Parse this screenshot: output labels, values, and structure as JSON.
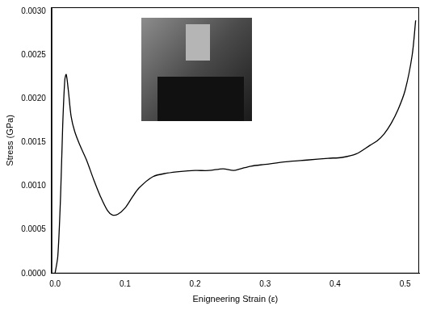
{
  "chart_data": {
    "type": "line",
    "x_label": "Enigneering Strain (ε)",
    "y_label": "Stress (GPa)",
    "x": [
      0,
      0.004,
      0.008,
      0.011,
      0.014,
      0.016,
      0.019,
      0.023,
      0.028,
      0.035,
      0.045,
      0.055,
      0.065,
      0.075,
      0.082,
      0.09,
      0.1,
      0.11,
      0.12,
      0.14,
      0.16,
      0.18,
      0.2,
      0.22,
      0.24,
      0.255,
      0.265,
      0.28,
      0.3,
      0.33,
      0.36,
      0.39,
      0.41,
      0.43,
      0.45,
      0.46,
      0.47,
      0.48,
      0.49,
      0.5,
      0.51,
      0.515
    ],
    "series": [
      {
        "name": "Stress",
        "color": "#000000",
        "values": [
          0,
          0.0002,
          0.0009,
          0.0017,
          0.00222,
          0.00228,
          0.0021,
          0.0018,
          0.00163,
          0.00148,
          0.0013,
          0.00108,
          0.00088,
          0.00072,
          0.00067,
          0.00068,
          0.00075,
          0.00087,
          0.00098,
          0.00111,
          0.00115,
          0.00117,
          0.00118,
          0.00118,
          0.0012,
          0.00118,
          0.0012,
          0.00123,
          0.00125,
          0.00128,
          0.0013,
          0.00132,
          0.00133,
          0.00137,
          0.00147,
          0.00152,
          0.0016,
          0.00172,
          0.00188,
          0.0021,
          0.0025,
          0.0029
        ]
      }
    ],
    "xlim": [
      -0.005,
      0.52
    ],
    "xticks": [
      {
        "value": 0,
        "label": "0.0"
      },
      0.1,
      0.2,
      0.3,
      0.4,
      0.5
    ],
    "ylim": [
      0,
      0.00305
    ],
    "yticks": [
      {
        "value": 0,
        "label": "0.0000"
      },
      {
        "value": 0.0005,
        "label": "0.0005"
      },
      {
        "value": 0.001,
        "label": "0.0010"
      },
      {
        "value": 0.0015,
        "label": "0.0015"
      },
      {
        "value": 0.002,
        "label": "0.0020"
      },
      {
        "value": 0.0025,
        "label": "0.0025"
      },
      {
        "value": 0.003,
        "label": "0.0030"
      }
    ],
    "grid": false
  }
}
